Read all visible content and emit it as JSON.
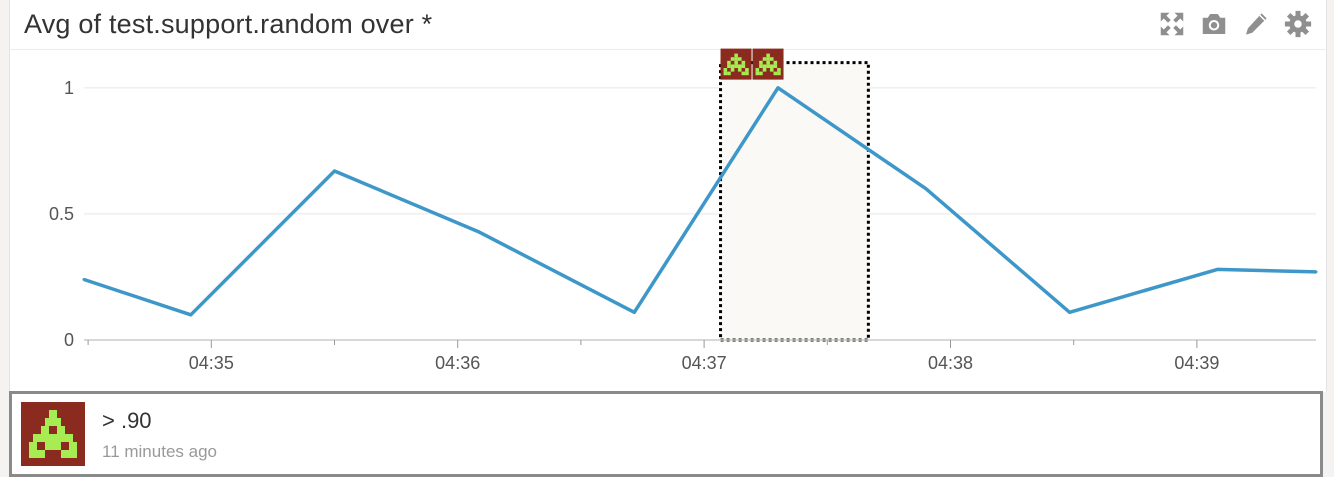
{
  "widget": {
    "title": "Avg of test.support.random over *",
    "tools": [
      {
        "icon": "expand-icon"
      },
      {
        "icon": "camera-icon"
      },
      {
        "icon": "pencil-icon"
      },
      {
        "icon": "gear-icon"
      }
    ]
  },
  "chart_data": {
    "type": "line",
    "x_axis_type": "time",
    "x": [
      "04:34:29",
      "04:34:55",
      "04:35:30",
      "04:36:05",
      "04:36:43",
      "04:37:18",
      "04:37:54",
      "04:38:29",
      "04:39:05",
      "04:39:29"
    ],
    "series": [
      {
        "values": [
          0.24,
          0.1,
          0.67,
          0.43,
          0.11,
          1.0,
          0.6,
          0.11,
          0.28,
          0.27
        ]
      }
    ],
    "xticks": [
      "04:35",
      "04:36",
      "04:37",
      "04:38",
      "04:39"
    ],
    "yticks": [
      "0",
      "0.5",
      "1"
    ],
    "ylim": [
      0,
      1.15
    ],
    "xlim": [
      "04:34:29",
      "04:39:29"
    ],
    "grid": true,
    "colors": {
      "line": "#3e97c9",
      "grid": "#e6e6e6",
      "axis": "#cccccc"
    },
    "event_window": {
      "start": "04:37:04",
      "end": "04:37:40",
      "markers": 2
    }
  },
  "event": {
    "title": "> .90",
    "time": "11 minutes ago",
    "icon": "monitor-alert-icon"
  }
}
